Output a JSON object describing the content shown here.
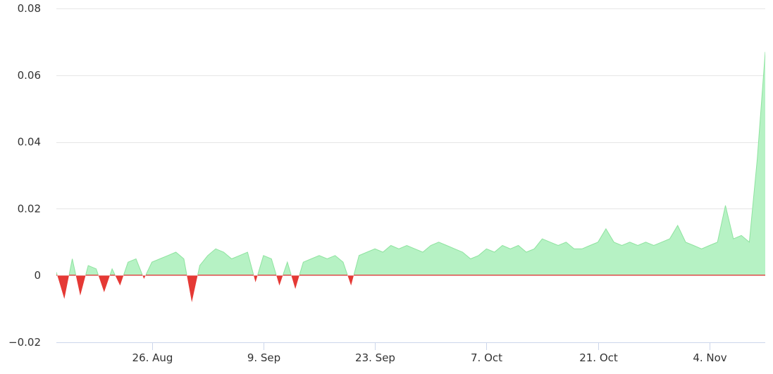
{
  "chart_data": {
    "type": "area",
    "title": "",
    "xlabel": "",
    "ylabel": "",
    "ylim": [
      -0.02,
      0.08
    ],
    "y_ticks": [
      -0.02,
      0,
      0.02,
      0.04,
      0.06,
      0.08
    ],
    "y_tick_labels": [
      "−0.02",
      "0",
      "0.02",
      "0.04",
      "0.06",
      "0.08"
    ],
    "x_range": [
      "2024-08-14",
      "2024-11-11"
    ],
    "x_ticks": [
      {
        "date": "2024-08-26",
        "label": "26. Aug"
      },
      {
        "date": "2024-09-09",
        "label": "9. Sep"
      },
      {
        "date": "2024-09-23",
        "label": "23. Sep"
      },
      {
        "date": "2024-10-07",
        "label": "7. Oct"
      },
      {
        "date": "2024-10-21",
        "label": "21. Oct"
      },
      {
        "date": "2024-11-04",
        "label": "4. Nov"
      }
    ],
    "grid": true,
    "legend": "none",
    "colors": {
      "positive_fill": "#b6f2c4",
      "positive_line": "#8ee39f",
      "negative": "#e53935"
    },
    "series": [
      {
        "x": [
          "2024-08-14",
          "2024-08-15",
          "2024-08-16",
          "2024-08-17",
          "2024-08-18",
          "2024-08-19",
          "2024-08-20",
          "2024-08-21",
          "2024-08-22",
          "2024-08-23",
          "2024-08-24",
          "2024-08-25",
          "2024-08-26",
          "2024-08-27",
          "2024-08-28",
          "2024-08-29",
          "2024-08-30",
          "2024-08-31",
          "2024-09-01",
          "2024-09-02",
          "2024-09-03",
          "2024-09-04",
          "2024-09-05",
          "2024-09-06",
          "2024-09-07",
          "2024-09-08",
          "2024-09-09",
          "2024-09-10",
          "2024-09-11",
          "2024-09-12",
          "2024-09-13",
          "2024-09-14",
          "2024-09-15",
          "2024-09-16",
          "2024-09-17",
          "2024-09-18",
          "2024-09-19",
          "2024-09-20",
          "2024-09-21",
          "2024-09-22",
          "2024-09-23",
          "2024-09-24",
          "2024-09-25",
          "2024-09-26",
          "2024-09-27",
          "2024-09-28",
          "2024-09-29",
          "2024-09-30",
          "2024-10-01",
          "2024-10-02",
          "2024-10-03",
          "2024-10-04",
          "2024-10-05",
          "2024-10-06",
          "2024-10-07",
          "2024-10-08",
          "2024-10-09",
          "2024-10-10",
          "2024-10-11",
          "2024-10-12",
          "2024-10-13",
          "2024-10-14",
          "2024-10-15",
          "2024-10-16",
          "2024-10-17",
          "2024-10-18",
          "2024-10-19",
          "2024-10-20",
          "2024-10-21",
          "2024-10-22",
          "2024-10-23",
          "2024-10-24",
          "2024-10-25",
          "2024-10-26",
          "2024-10-27",
          "2024-10-28",
          "2024-10-29",
          "2024-10-30",
          "2024-10-31",
          "2024-11-01",
          "2024-11-02",
          "2024-11-03",
          "2024-11-04",
          "2024-11-05",
          "2024-11-06",
          "2024-11-07",
          "2024-11-08",
          "2024-11-09",
          "2024-11-10",
          "2024-11-11"
        ],
        "values": [
          0.001,
          -0.007,
          0.005,
          -0.006,
          0.003,
          0.002,
          -0.005,
          0.002,
          -0.003,
          0.004,
          0.005,
          -0.001,
          0.004,
          0.005,
          0.006,
          0.007,
          0.005,
          -0.008,
          0.003,
          0.006,
          0.008,
          0.007,
          0.005,
          0.006,
          0.007,
          -0.002,
          0.006,
          0.005,
          -0.003,
          0.004,
          -0.004,
          0.004,
          0.005,
          0.006,
          0.005,
          0.006,
          0.004,
          -0.003,
          0.006,
          0.007,
          0.008,
          0.007,
          0.009,
          0.008,
          0.009,
          0.008,
          0.007,
          0.009,
          0.01,
          0.009,
          0.008,
          0.007,
          0.005,
          0.006,
          0.008,
          0.007,
          0.009,
          0.008,
          0.009,
          0.007,
          0.008,
          0.011,
          0.01,
          0.009,
          0.01,
          0.008,
          0.008,
          0.009,
          0.01,
          0.014,
          0.01,
          0.009,
          0.01,
          0.009,
          0.01,
          0.009,
          0.01,
          0.011,
          0.015,
          0.01,
          0.009,
          0.008,
          0.009,
          0.01,
          0.021,
          0.011,
          0.012,
          0.01,
          0.035,
          0.067
        ]
      }
    ]
  }
}
